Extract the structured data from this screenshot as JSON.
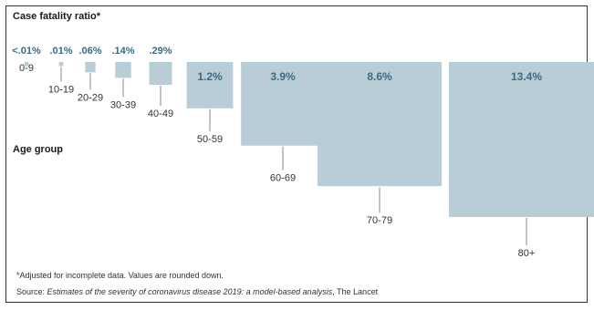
{
  "chart_data": {
    "type": "bar",
    "title": "Case fatality ratio*",
    "xlabel": "Age group",
    "categories": [
      "0-9",
      "10-19",
      "20-29",
      "30-39",
      "40-49",
      "50-59",
      "60-69",
      "70-79",
      "80+"
    ],
    "values": [
      0.01,
      0.01,
      0.06,
      0.14,
      0.29,
      1.2,
      3.9,
      8.6,
      13.4
    ],
    "value_labels": [
      "<.01%",
      ".01%",
      ".06%",
      ".14%",
      ".29%",
      "1.2%",
      "3.9%",
      "8.6%",
      "13.4%"
    ],
    "encoding": "square area proportional to value",
    "grid": false,
    "legend": "none"
  },
  "footnote": "*Adjusted for incomplete data. Values are rounded down.",
  "source": {
    "prefix": "Source: ",
    "title": "Estimates of the severity of coronavirus disease 2019: a model-based analysis",
    "suffix": ", The Lancet"
  },
  "colors": {
    "bar": "#b9cdd6",
    "value_label": "#3d6a80",
    "text": "#333333"
  }
}
